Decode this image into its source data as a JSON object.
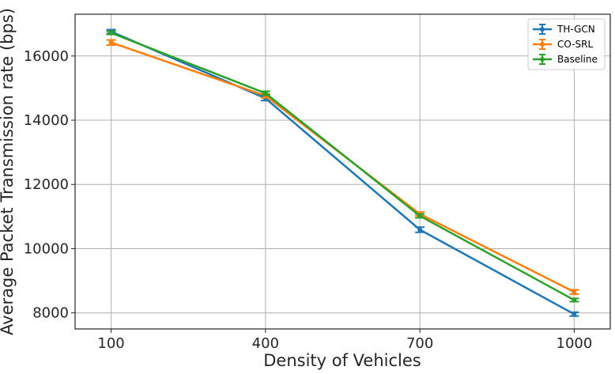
{
  "chart_data": {
    "type": "line",
    "title": "",
    "xlabel": "Density of Vehicles",
    "ylabel": "Average Packet Transmission rate (bps)",
    "categories": [
      "100",
      "400",
      "700",
      "1000"
    ],
    "x_tick_labels": [
      "100",
      "400",
      "700",
      "1000"
    ],
    "y_ticks": [
      8000,
      10000,
      12000,
      14000,
      16000
    ],
    "y_tick_labels": [
      "8000",
      "10000",
      "12000",
      "14000",
      "16000"
    ],
    "xlim": [
      100,
      1000
    ],
    "ylim": [
      7500,
      17300
    ],
    "grid": true,
    "legend_position": "top-right",
    "error_bars": true,
    "series": [
      {
        "name": "TH-GCN",
        "color": "#1f77b4",
        "values": [
          16760,
          14680,
          10590,
          7960
        ],
        "errors": [
          60,
          70,
          80,
          60
        ]
      },
      {
        "name": "CO-SRL",
        "color": "#ff7f0e",
        "values": [
          16420,
          14760,
          11080,
          8650
        ],
        "errors": [
          80,
          60,
          60,
          70
        ]
      },
      {
        "name": "Baseline",
        "color": "#2ca02c",
        "values": [
          16720,
          14840,
          11020,
          8400
        ],
        "errors": [
          50,
          60,
          60,
          50
        ]
      }
    ]
  }
}
